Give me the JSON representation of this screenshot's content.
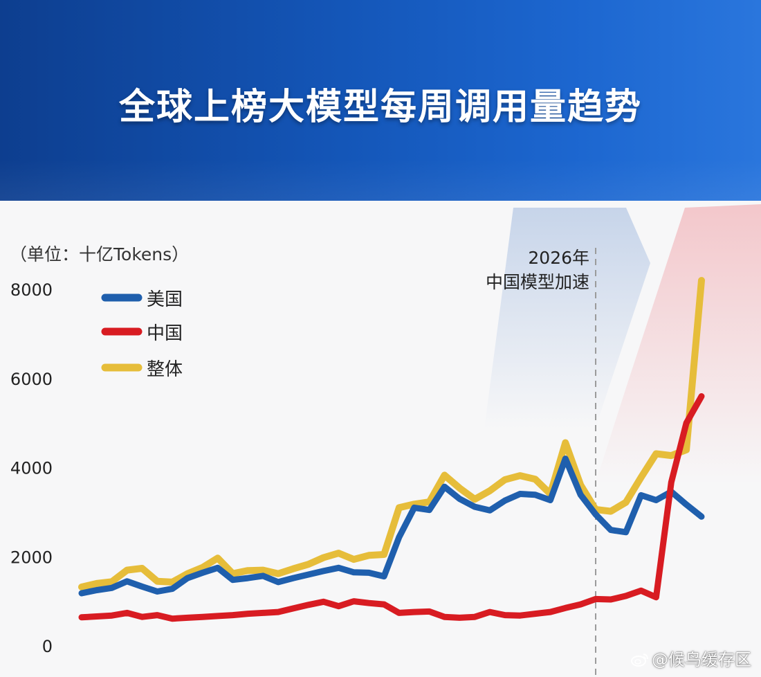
{
  "header": {
    "title": "全球上榜大模型每周调用量趋势"
  },
  "chart_data": {
    "type": "line",
    "title": "全球上榜大模型每周调用量趋势",
    "unit_label": "（单位：十亿Tokens）",
    "ylim": [
      0,
      8000
    ],
    "yticks": [
      0,
      2000,
      4000,
      6000,
      8000
    ],
    "grid": false,
    "legend_position": "top-left",
    "annotation": {
      "lines": [
        "2026年",
        "中国模型加速"
      ],
      "x_index": 34
    },
    "x": [
      0,
      1,
      2,
      3,
      4,
      5,
      6,
      7,
      8,
      9,
      10,
      11,
      12,
      13,
      14,
      15,
      16,
      17,
      18,
      19,
      20,
      21,
      22,
      23,
      24,
      25,
      26,
      27,
      28,
      29,
      30,
      31,
      32,
      33,
      34,
      35,
      36,
      37,
      38,
      39,
      40,
      41
    ],
    "series": [
      {
        "name": "美国",
        "color": "#1f5fad",
        "values": [
          1180,
          1250,
          1300,
          1450,
          1330,
          1220,
          1280,
          1520,
          1640,
          1750,
          1480,
          1520,
          1570,
          1430,
          1520,
          1600,
          1680,
          1750,
          1650,
          1640,
          1560,
          2440,
          3100,
          3050,
          3570,
          3300,
          3120,
          3040,
          3260,
          3410,
          3390,
          3270,
          4200,
          3390,
          2950,
          2600,
          2550,
          3380,
          3270,
          3460,
          3170,
          2900
        ]
      },
      {
        "name": "中国",
        "color": "#d81c22",
        "values": [
          640,
          660,
          680,
          740,
          650,
          690,
          610,
          630,
          650,
          670,
          690,
          720,
          740,
          760,
          840,
          920,
          990,
          890,
          1000,
          960,
          930,
          740,
          760,
          770,
          650,
          630,
          650,
          760,
          690,
          680,
          720,
          760,
          850,
          930,
          1050,
          1040,
          1120,
          1240,
          1090,
          3670,
          5000,
          5600
        ]
      },
      {
        "name": "整体",
        "color": "#e6bd3a",
        "values": [
          1320,
          1400,
          1440,
          1700,
          1740,
          1450,
          1430,
          1620,
          1760,
          1970,
          1620,
          1690,
          1700,
          1620,
          1730,
          1830,
          1980,
          2080,
          1940,
          2030,
          2050,
          3100,
          3180,
          3230,
          3830,
          3540,
          3290,
          3480,
          3730,
          3820,
          3740,
          3410,
          4560,
          3610,
          3060,
          3020,
          3220,
          3780,
          4310,
          4270,
          4400,
          8200
        ]
      }
    ]
  },
  "legend": {
    "items": [
      {
        "label": "美国",
        "color": "#1f5fad"
      },
      {
        "label": "中国",
        "color": "#d81c22"
      },
      {
        "label": "整体",
        "color": "#e6bd3a"
      }
    ]
  },
  "watermark": {
    "text": "@候鸟缓存区",
    "icon": "weibo-icon"
  }
}
